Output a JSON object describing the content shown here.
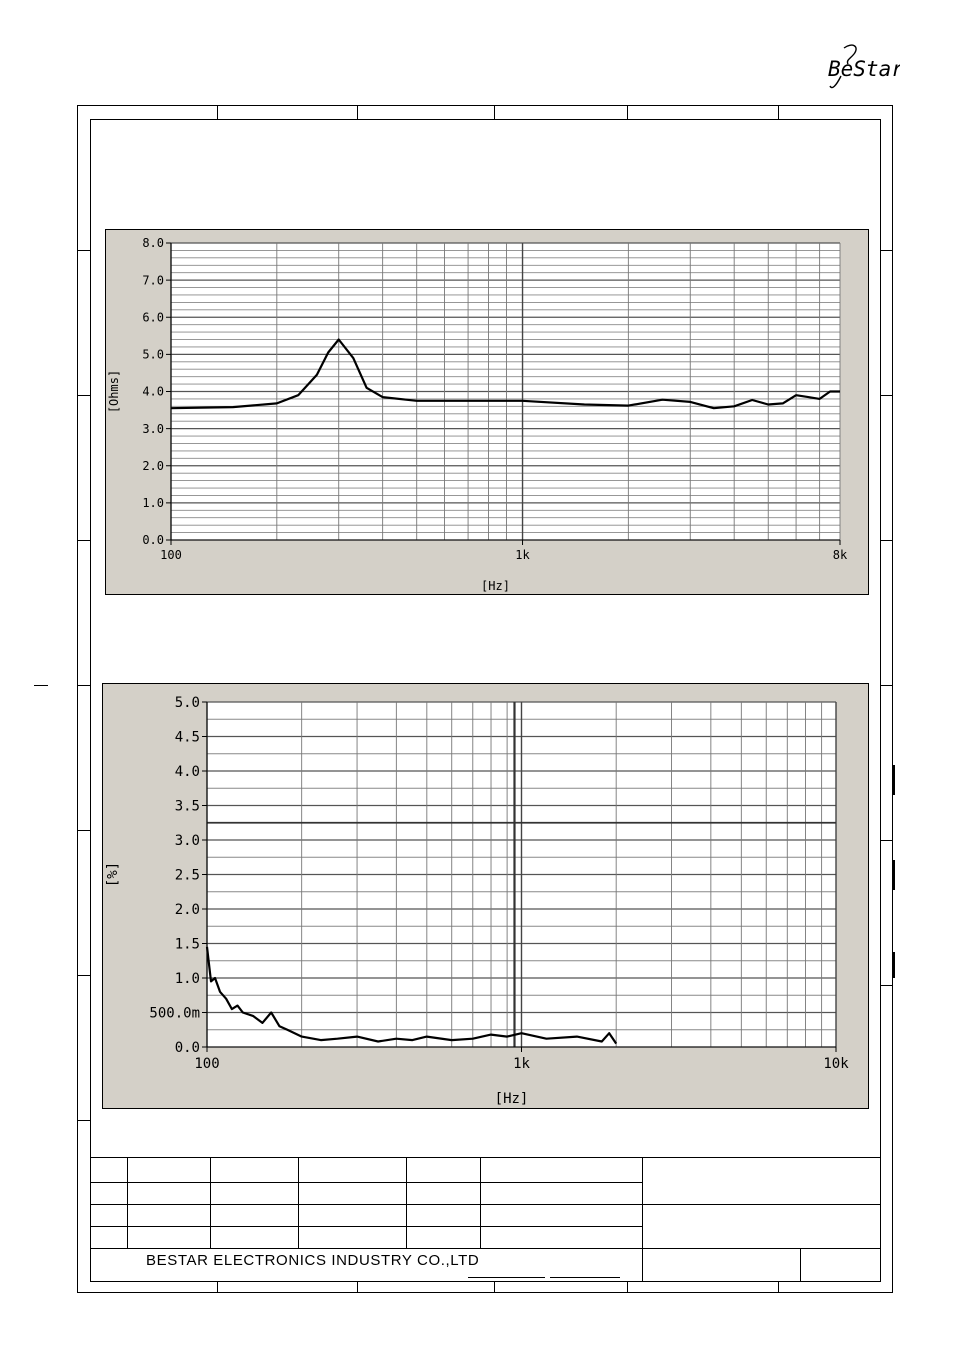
{
  "brand": {
    "logo_text": "BeStar"
  },
  "footer": {
    "company": "BESTAR ELECTRONICS INDUSTRY CO.,LTD"
  },
  "chart_data": [
    {
      "type": "line",
      "title": "",
      "xlabel": "[Hz]",
      "ylabel": "[Ohms]",
      "xscale": "log",
      "xlim": [
        100,
        8000
      ],
      "ylim": [
        0,
        8
      ],
      "xtick_labels": [
        "100",
        "1k",
        "8k"
      ],
      "ytick_labels": [
        "0.0",
        "1.0",
        "2.0",
        "3.0",
        "4.0",
        "5.0",
        "6.0",
        "7.0",
        "8.0"
      ],
      "grid": true,
      "line_color": "#000000",
      "series": [
        {
          "x": [
            100,
            150,
            200,
            230,
            260,
            280,
            300,
            330,
            360,
            400,
            500,
            700,
            1000,
            1500,
            2000,
            2500,
            3000,
            3500,
            4000,
            4500,
            5000,
            5500,
            6000,
            6500,
            7000,
            7500,
            8000
          ],
          "y": [
            3.55,
            3.58,
            3.68,
            3.9,
            4.45,
            5.05,
            5.4,
            4.9,
            4.1,
            3.85,
            3.75,
            3.75,
            3.75,
            3.65,
            3.62,
            3.78,
            3.72,
            3.55,
            3.6,
            3.77,
            3.65,
            3.68,
            3.9,
            3.85,
            3.8,
            4.0,
            4.0
          ]
        }
      ]
    },
    {
      "type": "line",
      "title": "",
      "xlabel": "[Hz]",
      "ylabel": "[%]",
      "xscale": "log",
      "xlim": [
        100,
        10000
      ],
      "ylim": [
        0,
        5
      ],
      "xtick_labels": [
        "100",
        "1k",
        "10k"
      ],
      "ytick_labels": [
        "0.0",
        "500.0m",
        "1.0",
        "1.5",
        "2.0",
        "2.5",
        "3.0",
        "3.5",
        "4.0",
        "4.5",
        "5.0"
      ],
      "grid": true,
      "line_color": "#000000",
      "series": [
        {
          "x": [
            100,
            103,
            106,
            110,
            115,
            120,
            125,
            130,
            140,
            150,
            160,
            170,
            180,
            200,
            230,
            260,
            300,
            350,
            400,
            450,
            500,
            600,
            700,
            800,
            900,
            1000,
            1200,
            1500,
            1800,
            1900,
            2000
          ],
          "y": [
            1.45,
            0.95,
            1.0,
            0.8,
            0.7,
            0.55,
            0.6,
            0.5,
            0.45,
            0.35,
            0.5,
            0.3,
            0.25,
            0.15,
            0.1,
            0.12,
            0.15,
            0.08,
            0.12,
            0.1,
            0.15,
            0.1,
            0.12,
            0.18,
            0.15,
            0.2,
            0.12,
            0.15,
            0.08,
            0.2,
            0.05
          ]
        }
      ]
    }
  ]
}
